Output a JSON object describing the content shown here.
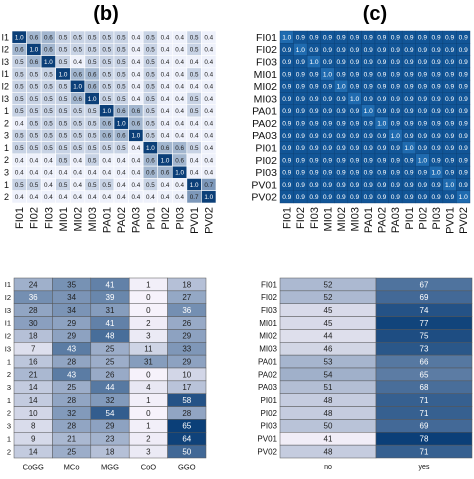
{
  "panel_labels": [
    "(b)",
    "(c)"
  ],
  "chart_data": [
    {
      "type": "heatmap",
      "panel": "(b)",
      "x_categories": [
        "FI01",
        "FI02",
        "FI03",
        "MI01",
        "MI02",
        "MI03",
        "PA01",
        "PA02",
        "PA03",
        "PI01",
        "PI02",
        "PI03",
        "PV01",
        "PV02"
      ],
      "row_labels": [
        "I1",
        "I2",
        "I3",
        "I1",
        "I2",
        "I3",
        "1",
        "2",
        "3",
        "1",
        "2",
        "3",
        "1",
        "2"
      ],
      "values": [
        [
          1.0,
          0.6,
          0.6,
          0.5,
          0.5,
          0.5,
          0.5,
          0.5,
          0.4,
          0.5,
          0.4,
          0.4,
          0.5,
          0.4
        ],
        [
          0.6,
          1.0,
          0.6,
          0.5,
          0.5,
          0.5,
          0.5,
          0.5,
          0.4,
          0.5,
          0.4,
          0.4,
          0.5,
          0.4
        ],
        [
          0.5,
          0.6,
          1.0,
          0.5,
          0.4,
          0.5,
          0.5,
          0.5,
          0.4,
          0.5,
          0.4,
          0.4,
          0.4,
          0.4
        ],
        [
          0.5,
          0.5,
          0.5,
          1.0,
          0.6,
          0.6,
          0.5,
          0.5,
          0.4,
          0.5,
          0.4,
          0.4,
          0.5,
          0.4
        ],
        [
          0.5,
          0.5,
          0.5,
          0.5,
          1.0,
          0.6,
          0.5,
          0.5,
          0.4,
          0.5,
          0.4,
          0.4,
          0.4,
          0.4
        ],
        [
          0.5,
          0.5,
          0.5,
          0.5,
          0.6,
          1.0,
          0.5,
          0.5,
          0.4,
          0.5,
          0.4,
          0.4,
          0.5,
          0.4
        ],
        [
          0.5,
          0.5,
          0.5,
          0.5,
          0.5,
          0.5,
          1.0,
          0.6,
          0.6,
          0.5,
          0.4,
          0.4,
          0.5,
          0.4
        ],
        [
          0.4,
          0.5,
          0.5,
          0.5,
          0.5,
          0.5,
          0.6,
          1.0,
          0.6,
          0.5,
          0.4,
          0.4,
          0.4,
          0.4
        ],
        [
          0.5,
          0.5,
          0.5,
          0.5,
          0.5,
          0.5,
          0.6,
          0.6,
          1.0,
          0.5,
          0.4,
          0.4,
          0.4,
          0.4
        ],
        [
          0.5,
          0.5,
          0.5,
          0.5,
          0.5,
          0.5,
          0.5,
          0.5,
          0.4,
          1.0,
          0.6,
          0.6,
          0.5,
          0.4
        ],
        [
          0.4,
          0.4,
          0.4,
          0.5,
          0.4,
          0.5,
          0.4,
          0.4,
          0.4,
          0.6,
          1.0,
          0.6,
          0.4,
          0.4
        ],
        [
          0.4,
          0.4,
          0.4,
          0.4,
          0.4,
          0.4,
          0.4,
          0.4,
          0.4,
          0.6,
          0.6,
          1.0,
          0.4,
          0.4
        ],
        [
          0.5,
          0.5,
          0.4,
          0.5,
          0.4,
          0.5,
          0.5,
          0.4,
          0.4,
          0.5,
          0.4,
          0.4,
          1.0,
          0.7
        ],
        [
          0.4,
          0.4,
          0.4,
          0.4,
          0.4,
          0.4,
          0.4,
          0.4,
          0.4,
          0.4,
          0.4,
          0.4,
          0.7,
          1.0
        ]
      ],
      "value_range": [
        0.4,
        1.0
      ],
      "colormap": [
        "#eef1fb",
        "#0b3f78"
      ]
    },
    {
      "type": "heatmap",
      "panel": "(c)",
      "x_categories": [
        "FI01",
        "FI02",
        "FI03",
        "MI01",
        "MI02",
        "MI03",
        "PA01",
        "PA02",
        "PA03",
        "PI01",
        "PI02",
        "PI03",
        "PV01",
        "PV02"
      ],
      "row_labels": [
        "FI01",
        "FI02",
        "FI03",
        "MI01",
        "MI02",
        "MI03",
        "PA01",
        "PA02",
        "PA03",
        "PI01",
        "PI02",
        "PI03",
        "PV01",
        "PV02"
      ],
      "values": [
        [
          1.0,
          0.9,
          0.9,
          0.9,
          0.9,
          0.9,
          0.9,
          0.9,
          0.9,
          0.9,
          0.9,
          0.9,
          0.9,
          0.9
        ],
        [
          0.9,
          1.0,
          0.9,
          0.9,
          0.9,
          0.9,
          0.9,
          0.9,
          0.9,
          0.9,
          0.9,
          0.9,
          0.9,
          0.9
        ],
        [
          0.9,
          0.9,
          1.0,
          0.9,
          0.9,
          0.9,
          0.9,
          0.9,
          0.9,
          0.9,
          0.9,
          0.9,
          0.9,
          0.9
        ],
        [
          0.9,
          0.9,
          0.9,
          1.0,
          0.9,
          0.9,
          0.9,
          0.9,
          0.9,
          0.9,
          0.9,
          0.9,
          0.9,
          0.9
        ],
        [
          0.9,
          0.9,
          0.9,
          0.9,
          1.0,
          0.9,
          0.9,
          0.9,
          0.9,
          0.9,
          0.9,
          0.9,
          0.9,
          0.9
        ],
        [
          0.9,
          0.9,
          0.9,
          0.9,
          0.9,
          1.0,
          0.9,
          0.9,
          0.9,
          0.9,
          0.9,
          0.9,
          0.9,
          0.9
        ],
        [
          0.9,
          0.9,
          0.9,
          0.9,
          0.9,
          0.9,
          1.0,
          0.9,
          0.9,
          0.9,
          0.9,
          0.9,
          0.9,
          0.9
        ],
        [
          0.9,
          0.9,
          0.9,
          0.9,
          0.9,
          0.9,
          0.9,
          1.0,
          0.9,
          0.9,
          0.9,
          0.9,
          0.9,
          0.9
        ],
        [
          0.9,
          0.9,
          0.9,
          0.9,
          0.9,
          0.9,
          0.9,
          0.9,
          1.0,
          0.9,
          0.9,
          0.9,
          0.9,
          0.9
        ],
        [
          0.9,
          0.9,
          0.9,
          0.9,
          0.9,
          0.9,
          0.9,
          0.9,
          0.9,
          1.0,
          0.9,
          0.9,
          0.9,
          0.9
        ],
        [
          0.9,
          0.9,
          0.9,
          0.9,
          0.9,
          0.9,
          0.9,
          0.9,
          0.9,
          0.9,
          1.0,
          0.9,
          0.9,
          0.9
        ],
        [
          0.9,
          0.9,
          0.9,
          0.9,
          0.9,
          0.9,
          0.9,
          0.9,
          0.9,
          0.9,
          0.9,
          1.0,
          0.9,
          0.9
        ],
        [
          0.9,
          0.9,
          0.9,
          0.9,
          0.9,
          0.9,
          0.9,
          0.9,
          0.9,
          0.9,
          0.9,
          0.9,
          1.0,
          0.9
        ],
        [
          0.9,
          0.9,
          0.9,
          0.9,
          0.9,
          0.9,
          0.9,
          0.9,
          0.9,
          0.9,
          0.9,
          0.9,
          0.9,
          1.0
        ]
      ],
      "value_range": [
        0.85,
        1.0
      ],
      "colormap": [
        "#0a4a8a",
        "#1f6bb0"
      ]
    },
    {
      "type": "heatmap",
      "panel": "bottom-left",
      "x_categories": [
        "CoGG",
        "MCo",
        "MGG",
        "CoO",
        "GGO"
      ],
      "row_labels": [
        "I1",
        "I2",
        "I3",
        "I1",
        "I2",
        "I3",
        "1",
        "2",
        "3",
        "1",
        "2",
        "3",
        "1",
        "2"
      ],
      "values": [
        [
          24,
          35,
          41,
          1,
          18
        ],
        [
          36,
          34,
          39,
          0,
          27
        ],
        [
          28,
          34,
          31,
          0,
          36
        ],
        [
          30,
          29,
          41,
          2,
          26
        ],
        [
          18,
          29,
          48,
          3,
          29
        ],
        [
          7,
          43,
          25,
          11,
          33
        ],
        [
          16,
          28,
          25,
          31,
          29
        ],
        [
          21,
          43,
          26,
          0,
          10
        ],
        [
          14,
          25,
          44,
          4,
          17
        ],
        [
          14,
          28,
          32,
          1,
          58
        ],
        [
          10,
          32,
          54,
          0,
          28
        ],
        [
          8,
          28,
          29,
          1,
          65
        ],
        [
          9,
          21,
          23,
          2,
          64
        ],
        [
          14,
          25,
          18,
          3,
          50
        ]
      ],
      "value_range": [
        0,
        65
      ],
      "colormap": [
        "#f6f2fb",
        "#0b3f78"
      ]
    },
    {
      "type": "heatmap",
      "panel": "bottom-right",
      "x_categories": [
        "no",
        "yes"
      ],
      "row_labels": [
        "FI01",
        "FI02",
        "FI03",
        "MI01",
        "MI02",
        "MI03",
        "PA01",
        "PA02",
        "PA03",
        "PI01",
        "PI02",
        "PI03",
        "PV01",
        "PV02"
      ],
      "values": [
        [
          52,
          67
        ],
        [
          52,
          69
        ],
        [
          45,
          74
        ],
        [
          45,
          77
        ],
        [
          44,
          75
        ],
        [
          46,
          73
        ],
        [
          53,
          66
        ],
        [
          54,
          65
        ],
        [
          51,
          68
        ],
        [
          48,
          71
        ],
        [
          48,
          71
        ],
        [
          50,
          69
        ],
        [
          41,
          78
        ],
        [
          48,
          71
        ]
      ],
      "value_range": [
        40,
        78
      ],
      "colormap": [
        "#f7f2fa",
        "#0b3f78"
      ]
    }
  ]
}
